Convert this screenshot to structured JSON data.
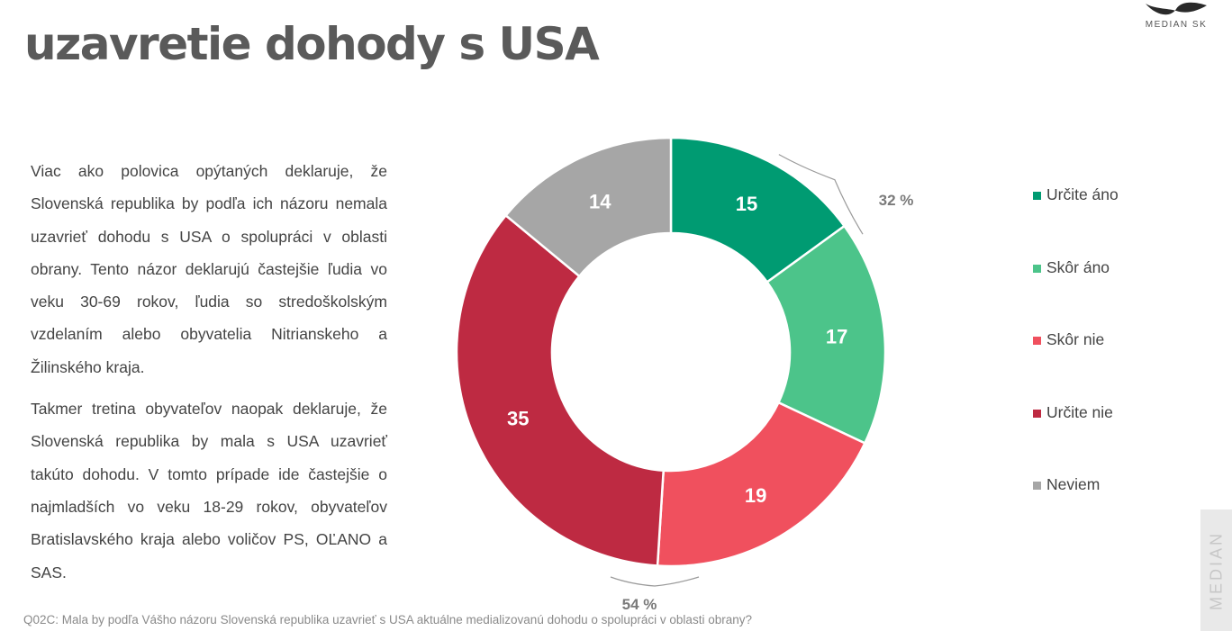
{
  "title": "uzavretie dohody s USA",
  "logo_text": "MEDIAN SK",
  "side_brand": "MEDIAN",
  "paragraphs": [
    "Viac ako polovica opýtaných deklaruje, že Slovenská republika by podľa ich názoru nemala uzavrieť dohodu s USA o spolupráci v oblasti obrany. Tento názor deklarujú častejšie ľudia vo veku 30-69 rokov, ľudia so stredoškolským vzdelaním alebo obyvatelia Nitrianskeho a Žilinského kraja.",
    "Takmer tretina obyvateľov naopak deklaruje, že Slovenská republika by mala s USA uzavrieť takúto dohodu. V tomto prípade ide častejšie o najmladších vo veku 18-29 rokov, obyvateľov Bratislavského kraja alebo voličov PS, OĽANO a SAS."
  ],
  "footnote": "Q02C: Mala by podľa Vášho názoru Slovenská republika uzavrieť s USA aktuálne medializovanú dohodu o spolupráci v oblasti obrany?",
  "chart_data": {
    "type": "pie",
    "variant": "donut",
    "categories": [
      "Určite áno",
      "Skôr áno",
      "Skôr nie",
      "Určite nie",
      "Neviem"
    ],
    "values": [
      15,
      17,
      19,
      35,
      14
    ],
    "colors": [
      "#009b72",
      "#4cc48a",
      "#f0505e",
      "#be2a42",
      "#a6a6a6"
    ],
    "data_labels": [
      "15",
      "17",
      "19",
      "35",
      "14"
    ],
    "annotations": [
      {
        "label": "32 %",
        "covers": [
          "Určite áno",
          "Skôr áno"
        ]
      },
      {
        "label": "54 %",
        "covers": [
          "Skôr nie",
          "Určite nie"
        ]
      }
    ],
    "legend_position": "right"
  }
}
